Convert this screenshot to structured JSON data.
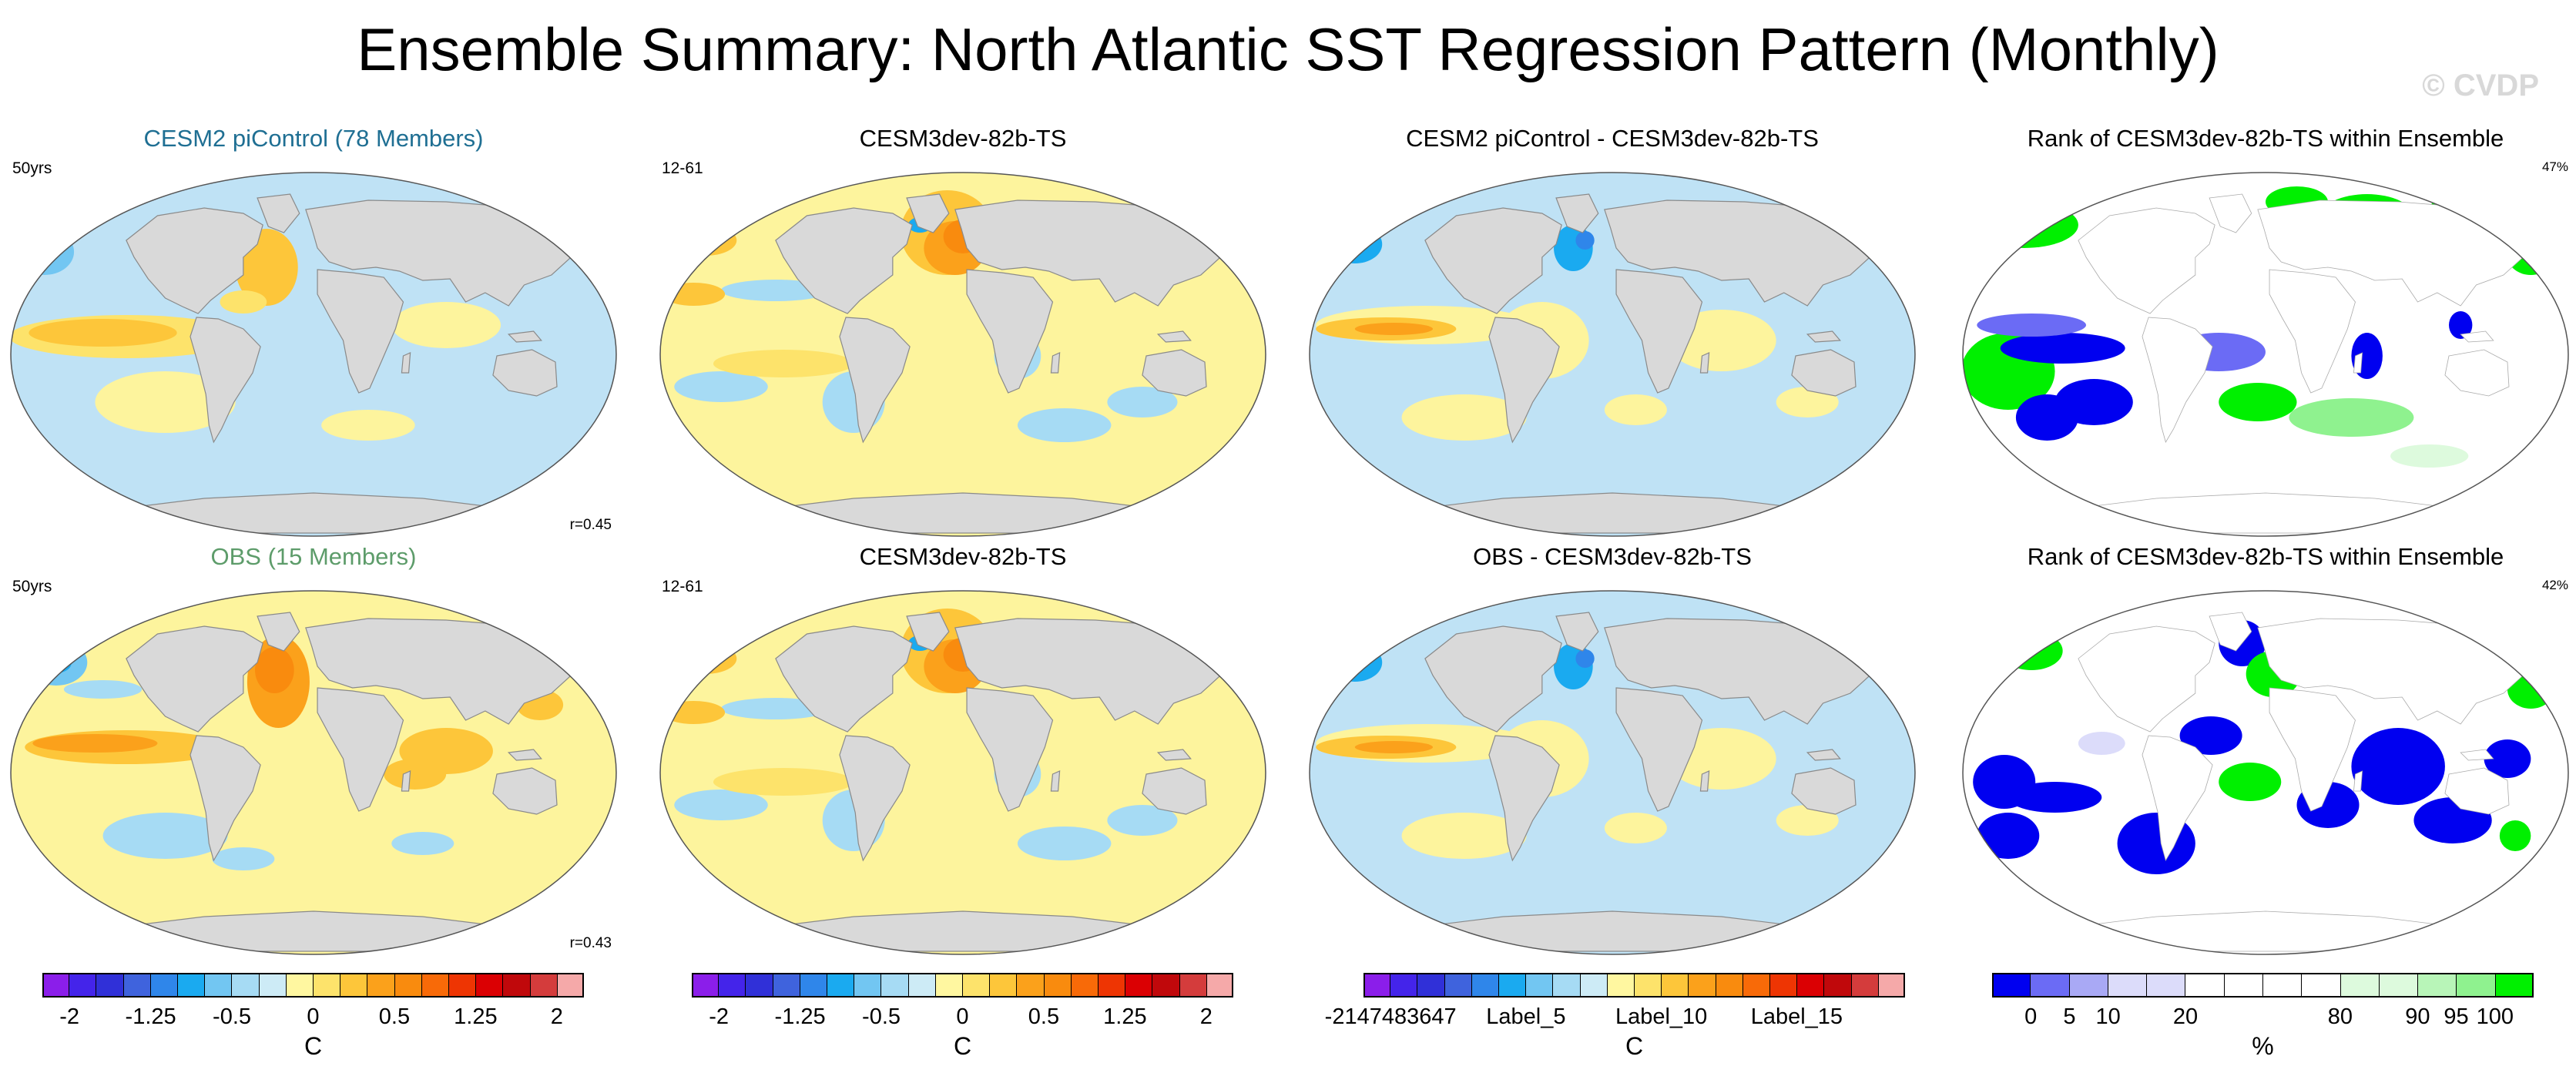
{
  "title": "Ensemble Summary: North Atlantic SST Regression Pattern (Monthly)",
  "watermark": "© CVDP",
  "colors": {
    "land": "#d9d9d9",
    "ocean_positive": "#fdf49d",
    "ocean_negative": "#bfe2f5",
    "title_blue": "#1f6f93",
    "title_green": "#5d9c6a",
    "rank_high": "#00f000",
    "rank_low": "#0000ee",
    "rank_mid": "#ffffff"
  },
  "chart_data": [
    {
      "type": "heatmap",
      "title": "CESM2 piControl (78 Members)",
      "title_color": "#1f6f93",
      "left_label": "50yrs",
      "corner_label": "",
      "stat_label": "r=0.45",
      "variant": "ens",
      "colorbar": "sst"
    },
    {
      "type": "heatmap",
      "title": "CESM3dev-82b-TS",
      "title_color": "#000000",
      "left_label": "12-61",
      "corner_label": "",
      "stat_label": "",
      "variant": "model",
      "colorbar": "sst"
    },
    {
      "type": "heatmap",
      "title": "CESM2 piControl - CESM3dev-82b-TS",
      "title_color": "#000000",
      "left_label": "",
      "corner_label": "",
      "stat_label": "",
      "variant": "diff",
      "colorbar": "diff"
    },
    {
      "type": "heatmap",
      "title": "Rank of CESM3dev-82b-TS within Ensemble",
      "title_color": "#000000",
      "left_label": "",
      "corner_label": "47%",
      "stat_label": "",
      "variant": "rank1",
      "colorbar": "rank"
    },
    {
      "type": "heatmap",
      "title": "OBS (15 Members)",
      "title_color": "#5d9c6a",
      "left_label": "50yrs",
      "corner_label": "",
      "stat_label": "r=0.43",
      "variant": "obs",
      "colorbar": "sst"
    },
    {
      "type": "heatmap",
      "title": "CESM3dev-82b-TS",
      "title_color": "#000000",
      "left_label": "12-61",
      "corner_label": "",
      "stat_label": "",
      "variant": "model",
      "colorbar": "sst"
    },
    {
      "type": "heatmap",
      "title": "OBS - CESM3dev-82b-TS",
      "title_color": "#000000",
      "left_label": "",
      "corner_label": "",
      "stat_label": "",
      "variant": "diff",
      "colorbar": "diff"
    },
    {
      "type": "heatmap",
      "title": "Rank of CESM3dev-82b-TS within Ensemble",
      "title_color": "#000000",
      "left_label": "",
      "corner_label": "42%",
      "stat_label": "",
      "variant": "rank2",
      "colorbar": "rank"
    }
  ],
  "colorbars": {
    "sst": {
      "unit": "C",
      "colors": [
        "#8b1eea",
        "#4424ea",
        "#3030d8",
        "#3f63dd",
        "#2f86ea",
        "#1aaaf0",
        "#72c6f2",
        "#a6dbf4",
        "#cdebf6",
        "#fff7a0",
        "#fde36b",
        "#fdc63a",
        "#fba11b",
        "#f98b0e",
        "#f86a08",
        "#ee3503",
        "#db0003",
        "#c0080b",
        "#d43c3c",
        "#f5a9a9"
      ],
      "ticks": [
        {
          "label": "-2",
          "index": 1
        },
        {
          "label": "-1.25",
          "index": 4
        },
        {
          "label": "-0.5",
          "index": 7
        },
        {
          "label": "0",
          "index": 10
        },
        {
          "label": "0.5",
          "index": 13
        },
        {
          "label": "1.25",
          "index": 16
        },
        {
          "label": "2",
          "index": 19
        }
      ]
    },
    "diff": {
      "unit": "C",
      "colors": [
        "#8b1eea",
        "#4424ea",
        "#3030d8",
        "#3f63dd",
        "#2f86ea",
        "#1aaaf0",
        "#72c6f2",
        "#a6dbf4",
        "#cdebf6",
        "#fff7a0",
        "#fde36b",
        "#fdc63a",
        "#fba11b",
        "#f98b0e",
        "#f86a08",
        "#ee3503",
        "#db0003",
        "#c0080b",
        "#d43c3c",
        "#f5a9a9"
      ],
      "ticks": [
        {
          "label": "-2147483647",
          "index": 1
        },
        {
          "label": "Label_5",
          "index": 6
        },
        {
          "label": "Label_10",
          "index": 11
        },
        {
          "label": "Label_15",
          "index": 16
        }
      ]
    },
    "rank": {
      "unit": "%",
      "colors": [
        "#0000f0",
        "#6b6bf5",
        "#a9a9f5",
        "#dcdcfa",
        "#dcdcfa",
        "#ffffff",
        "#ffffff",
        "#ffffff",
        "#ffffff",
        "#ddfadd",
        "#ddfadd",
        "#b8f5b8",
        "#8ff28f",
        "#00f000"
      ],
      "ticks": [
        {
          "label": "0",
          "index": 1
        },
        {
          "label": "5",
          "index": 2
        },
        {
          "label": "10",
          "index": 3
        },
        {
          "label": "20",
          "index": 5
        },
        {
          "label": "80",
          "index": 9
        },
        {
          "label": "90",
          "index": 11
        },
        {
          "label": "95",
          "index": 12
        },
        {
          "label": "100",
          "index": 13
        }
      ]
    }
  }
}
